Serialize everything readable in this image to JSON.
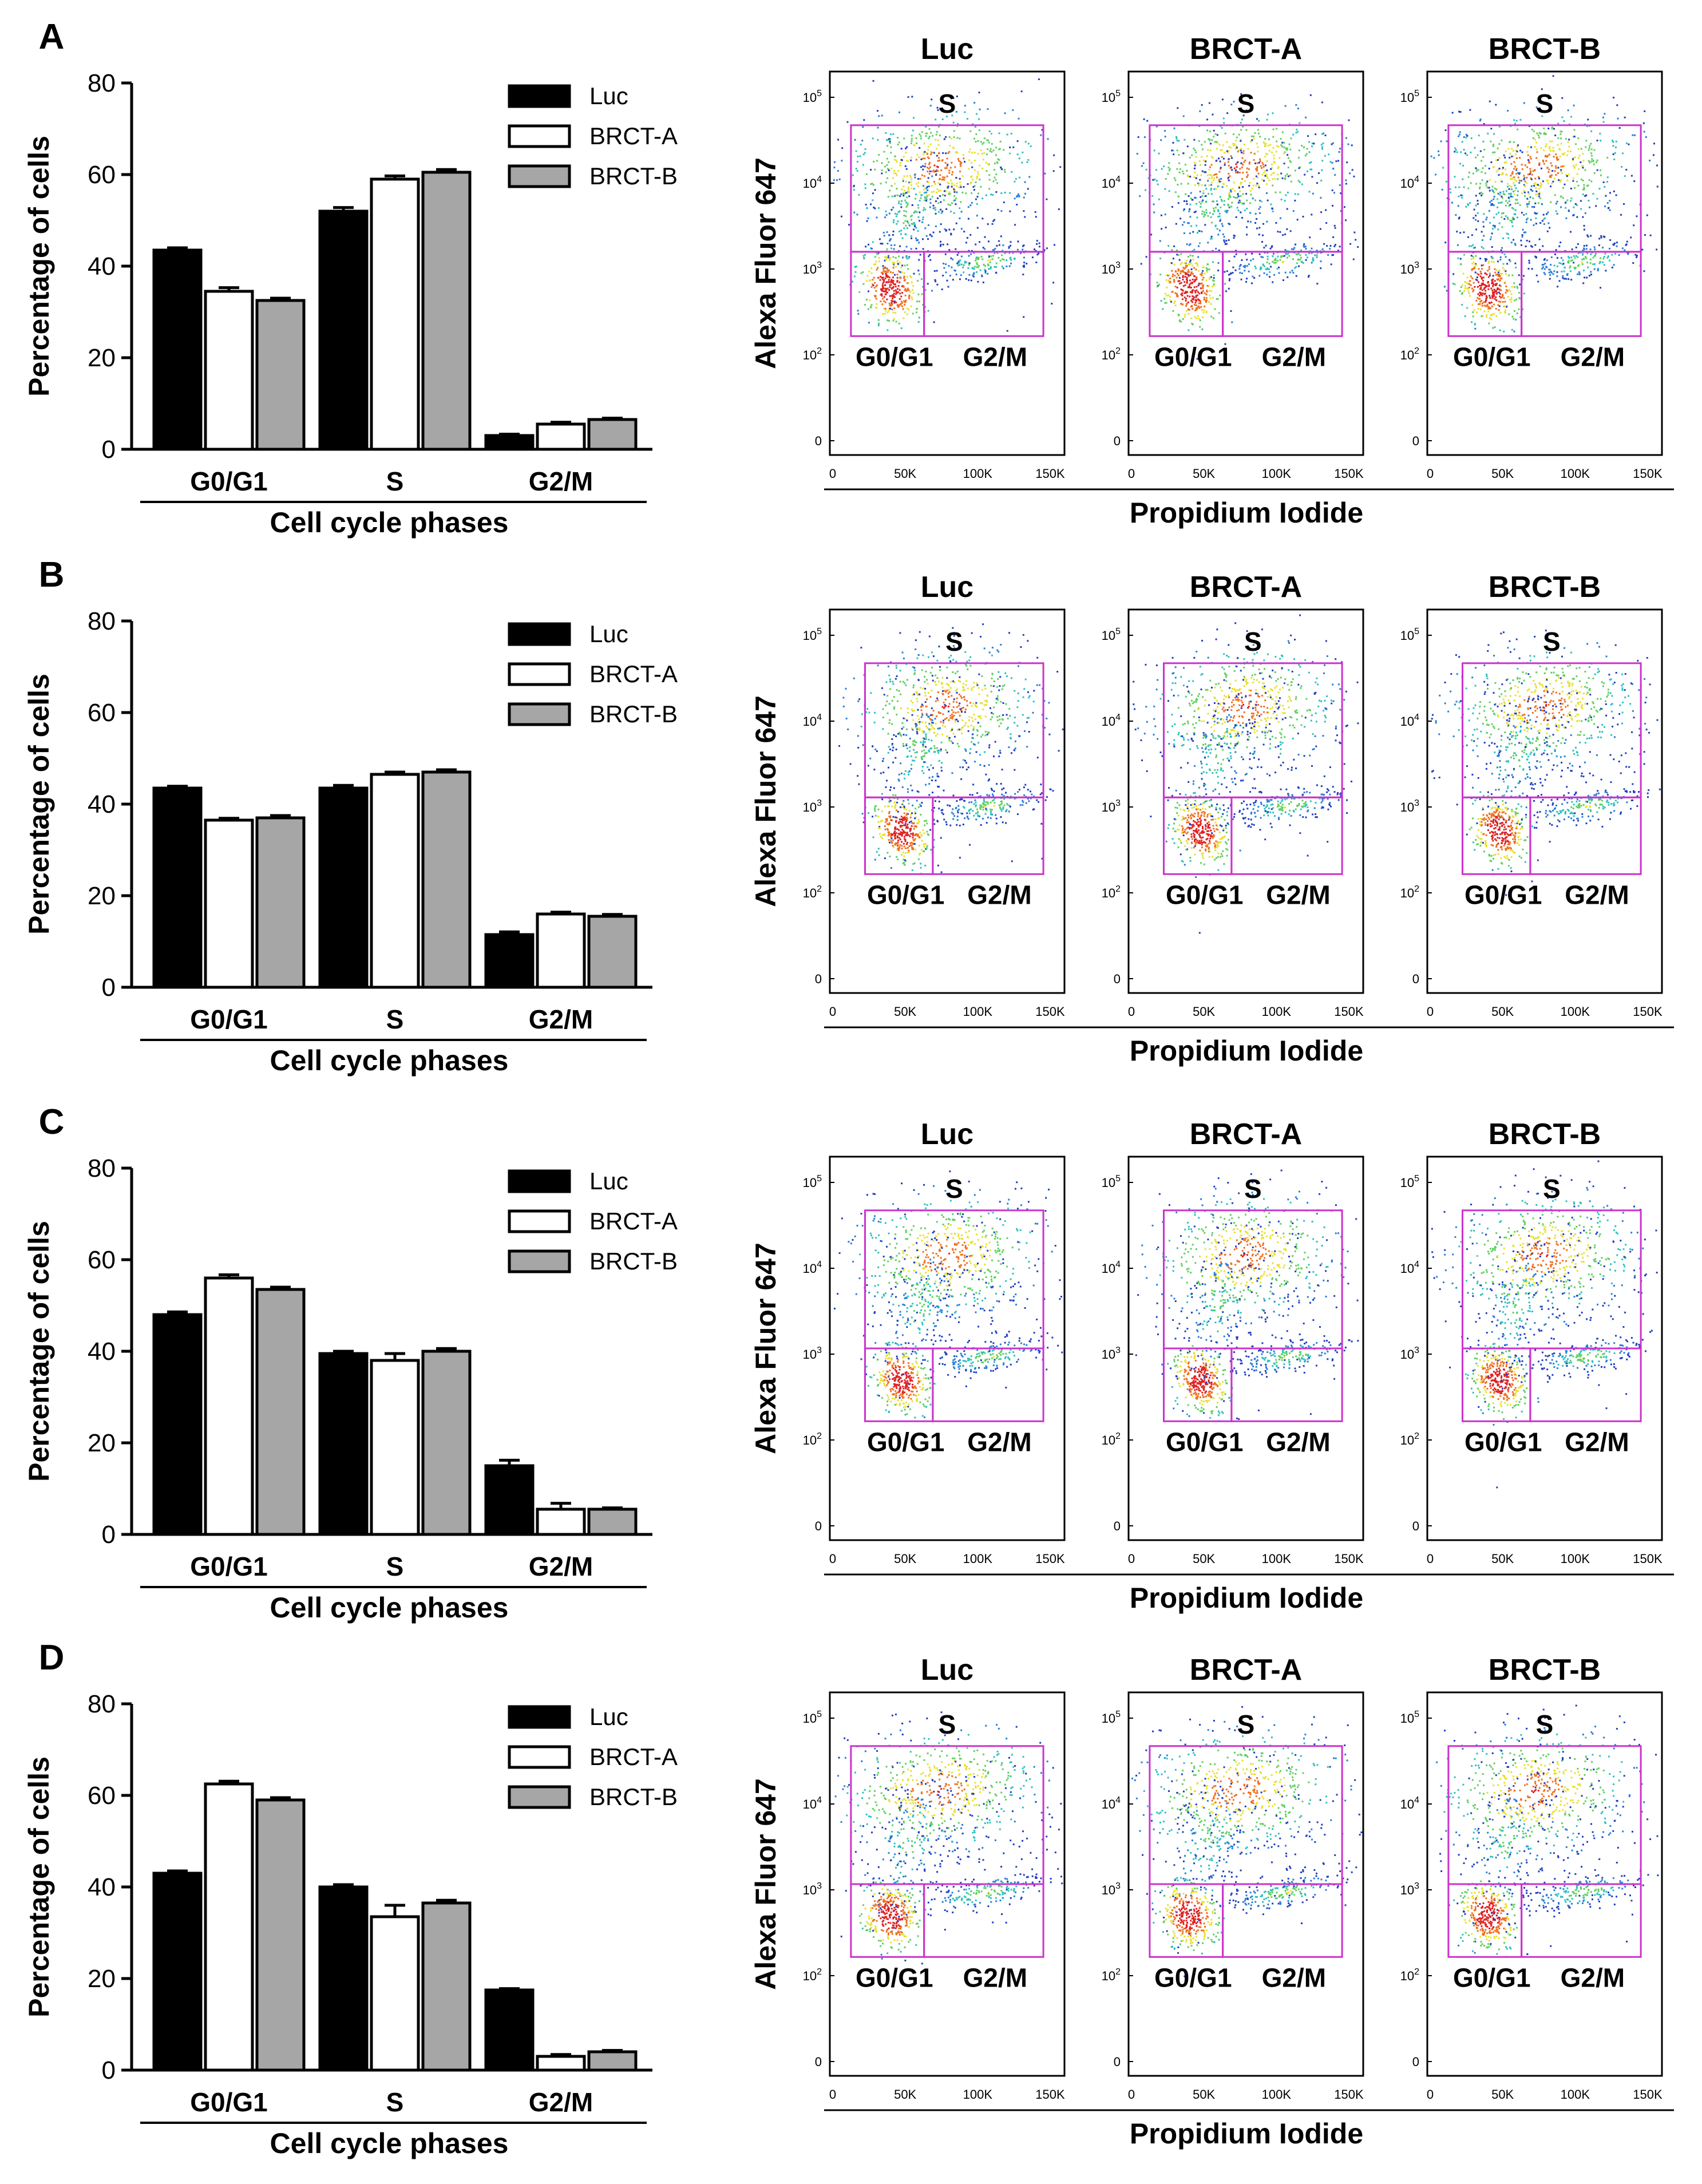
{
  "figure": {
    "series_names": [
      "Luc",
      "BRCT-A",
      "BRCT-B"
    ],
    "colors": {
      "Luc": "#000000",
      "BRCT-A": "#ffffff",
      "BRCT-B": "#a6a6a6",
      "gate": "#cc33cc",
      "axis": "#000000"
    },
    "flow": {
      "sample_titles": [
        "Luc",
        "BRCT-A",
        "BRCT-B"
      ],
      "y_axis_label": "Alexa Fluor 647",
      "x_axis_label": "Propidium Iodide",
      "x_ticks": [
        "0",
        "50K",
        "100K",
        "150K"
      ],
      "y_ticks": [
        "10^5",
        "10^4",
        "10^3",
        "10^2",
        "0"
      ],
      "gate_labels": {
        "s": "S",
        "g0g1": "G0/G1",
        "g2m": "G2/M"
      }
    }
  },
  "chart_data": [
    {
      "panel": "A",
      "type": "bar",
      "title": "",
      "xlabel": "Cell cycle phases",
      "ylabel": "Percentage of cells",
      "ylim": [
        0,
        80
      ],
      "yticks": [
        0,
        20,
        40,
        60,
        80
      ],
      "categories": [
        "G0/G1",
        "S",
        "G2/M"
      ],
      "legend_position": "top-right",
      "series": [
        {
          "name": "Luc",
          "values": [
            43.5,
            52,
            3
          ],
          "errors": [
            0.5,
            0.8,
            0.3
          ]
        },
        {
          "name": "BRCT-A",
          "values": [
            34.5,
            59,
            5.5
          ],
          "errors": [
            0.8,
            0.7,
            0.4
          ]
        },
        {
          "name": "BRCT-B",
          "values": [
            32.5,
            60.5,
            6.5
          ],
          "errors": [
            0.5,
            0.6,
            0.3
          ]
        }
      ]
    },
    {
      "panel": "B",
      "type": "bar",
      "title": "",
      "xlabel": "Cell cycle phases",
      "ylabel": "Percentage of cells",
      "ylim": [
        0,
        80
      ],
      "yticks": [
        0,
        20,
        40,
        60,
        80
      ],
      "categories": [
        "G0/G1",
        "S",
        "G2/M"
      ],
      "legend_position": "top-right",
      "series": [
        {
          "name": "Luc",
          "values": [
            43.5,
            43.5,
            11.5
          ],
          "errors": [
            0.4,
            0.6,
            0.6
          ]
        },
        {
          "name": "BRCT-A",
          "values": [
            36.5,
            46.5,
            16
          ],
          "errors": [
            0.4,
            0.5,
            0.4
          ]
        },
        {
          "name": "BRCT-B",
          "values": [
            37,
            47,
            15.5
          ],
          "errors": [
            0.5,
            0.5,
            0.4
          ]
        }
      ]
    },
    {
      "panel": "C",
      "type": "bar",
      "title": "",
      "xlabel": "Cell cycle phases",
      "ylabel": "Percentage of cells",
      "ylim": [
        0,
        80
      ],
      "yticks": [
        0,
        20,
        40,
        60,
        80
      ],
      "categories": [
        "G0/G1",
        "S",
        "G2/M"
      ],
      "legend_position": "top-right",
      "series": [
        {
          "name": "Luc",
          "values": [
            48,
            39.5,
            15
          ],
          "errors": [
            0.6,
            0.5,
            1.2
          ]
        },
        {
          "name": "BRCT-A",
          "values": [
            56,
            38,
            5.5
          ],
          "errors": [
            0.7,
            1.5,
            1.3
          ]
        },
        {
          "name": "BRCT-B",
          "values": [
            53.5,
            40,
            5.5
          ],
          "errors": [
            0.5,
            0.6,
            0.3
          ]
        }
      ]
    },
    {
      "panel": "D",
      "type": "bar",
      "title": "",
      "xlabel": "Cell cycle phases",
      "ylabel": "Percentage of cells",
      "ylim": [
        0,
        80
      ],
      "yticks": [
        0,
        20,
        40,
        60,
        80
      ],
      "categories": [
        "G0/G1",
        "S",
        "G2/M"
      ],
      "legend_position": "top-right",
      "series": [
        {
          "name": "Luc",
          "values": [
            43,
            40,
            17.5
          ],
          "errors": [
            0.5,
            0.5,
            0.3
          ]
        },
        {
          "name": "BRCT-A",
          "values": [
            62.5,
            33.5,
            3
          ],
          "errors": [
            0.6,
            2.5,
            0.4
          ]
        },
        {
          "name": "BRCT-B",
          "values": [
            59,
            36.5,
            4
          ],
          "errors": [
            0.5,
            0.6,
            0.3
          ]
        }
      ]
    }
  ]
}
